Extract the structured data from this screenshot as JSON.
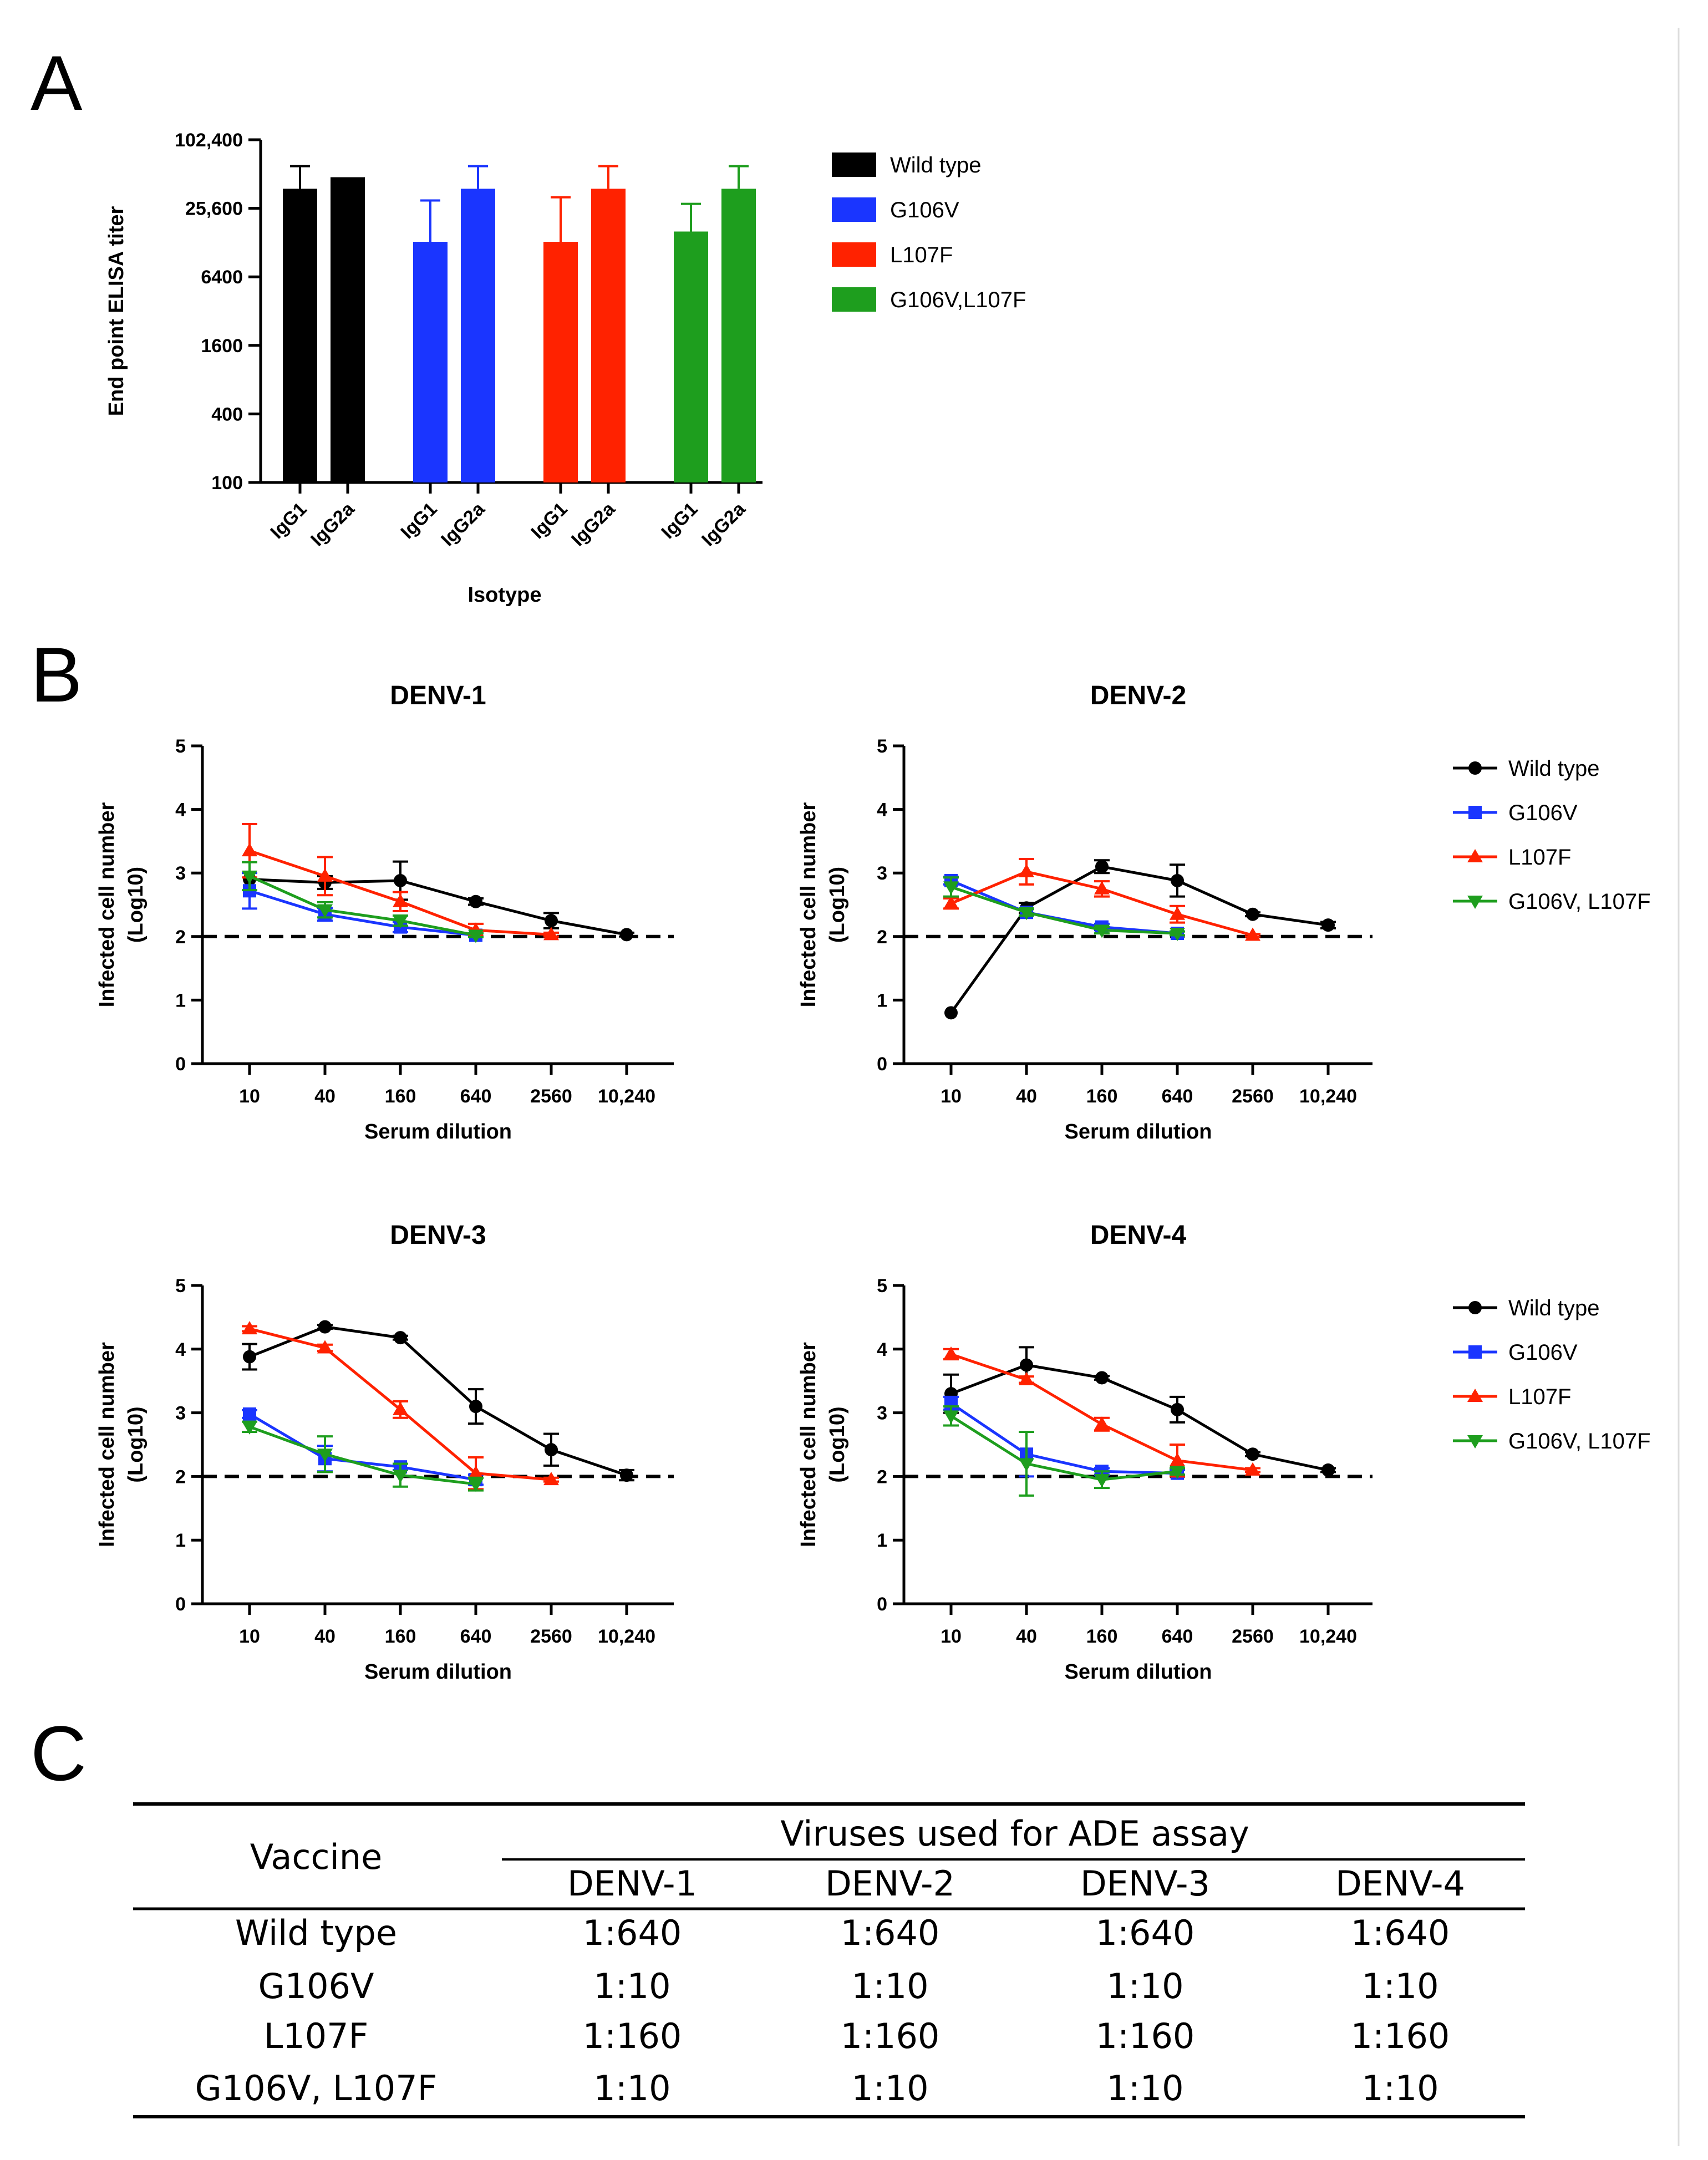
{
  "panels": {
    "a": "A",
    "b": "B",
    "c": "C"
  },
  "colors": {
    "Wild type": "#000000",
    "G106V": "#1a35ff",
    "L107F": "#ff2200",
    "G106V,L107F": "#1e9e1e"
  },
  "chart_data": [
    {
      "type": "bar",
      "panel": "A",
      "title": "",
      "ylabel": "End point ELISA titer",
      "xlabel": "Isotype",
      "yscale": "log",
      "ylim": [
        100,
        102400
      ],
      "ytick_labels": [
        "100",
        "400",
        "1600",
        "6400",
        "25,600",
        "102,400"
      ],
      "categories": [
        "IgG1",
        "IgG2a"
      ],
      "legend": [
        "Wild type",
        "G106V",
        "L107F",
        "G106V,L107F"
      ],
      "series": [
        {
          "name": "Wild type",
          "values": [
            38000,
            48000
          ],
          "error": [
            60000,
            null
          ]
        },
        {
          "name": "G106V",
          "values": [
            13000,
            38000
          ],
          "error": [
            30000,
            60000
          ]
        },
        {
          "name": "L107F",
          "values": [
            13000,
            38000
          ],
          "error": [
            32000,
            60000
          ]
        },
        {
          "name": "G106V,L107F",
          "values": [
            16000,
            38000
          ],
          "error": [
            28000,
            60000
          ]
        }
      ]
    },
    {
      "type": "line",
      "panel": "B",
      "title": "DENV-1",
      "xlabel": "Serum dilution",
      "ylabel": "Infected cell number",
      "ylabel2": "(Log10)",
      "x": [
        "10",
        "40",
        "160",
        "640",
        "2560",
        "10,240"
      ],
      "ylim": [
        0,
        5
      ],
      "yticks": [
        "0",
        "1",
        "2",
        "3",
        "4",
        "5"
      ],
      "reference_line": 2,
      "series": [
        {
          "name": "Wild type",
          "values": [
            2.9,
            2.85,
            2.88,
            2.55,
            2.25,
            2.03
          ],
          "error": [
            0,
            0.1,
            0.3,
            0.05,
            0.12,
            0.03
          ]
        },
        {
          "name": "G106V",
          "values": [
            2.72,
            2.35,
            2.15,
            2.02,
            null,
            null
          ],
          "error": [
            0.28,
            0.1,
            0.08,
            0.03,
            null,
            null
          ]
        },
        {
          "name": "L107F",
          "values": [
            3.35,
            2.95,
            2.55,
            2.1,
            2.03,
            null
          ],
          "error": [
            0.42,
            0.3,
            0.15,
            0.1,
            0.03,
            null
          ]
        },
        {
          "name": "G106V, L107F",
          "values": [
            2.95,
            2.42,
            2.25,
            2.02,
            null,
            null
          ],
          "error": [
            0.22,
            0.12,
            0.08,
            0.03,
            null,
            null
          ]
        }
      ]
    },
    {
      "type": "line",
      "panel": "B",
      "title": "DENV-2",
      "xlabel": "Serum dilution",
      "ylabel": "Infected cell number",
      "ylabel2": "(Log10)",
      "x": [
        "10",
        "40",
        "160",
        "640",
        "2560",
        "10,240"
      ],
      "ylim": [
        0,
        5
      ],
      "yticks": [
        "0",
        "1",
        "2",
        "3",
        "4",
        "5"
      ],
      "reference_line": 2,
      "legend": [
        "Wild type",
        "G106V",
        "L107F",
        "G106V, L107F"
      ],
      "series": [
        {
          "name": "Wild type",
          "values": [
            0.8,
            2.45,
            3.1,
            2.88,
            2.35,
            2.18
          ],
          "error": [
            0,
            0.08,
            0.1,
            0.25,
            0.03,
            0.05
          ]
        },
        {
          "name": "G106V",
          "values": [
            2.88,
            2.38,
            2.15,
            2.05,
            null,
            null
          ],
          "error": [
            0.06,
            0.05,
            0.05,
            0.03,
            null,
            null
          ]
        },
        {
          "name": "L107F",
          "values": [
            2.52,
            3.02,
            2.75,
            2.35,
            2.02,
            null
          ],
          "error": [
            0.08,
            0.2,
            0.12,
            0.13,
            0.02,
            null
          ]
        },
        {
          "name": "G106V, L107F",
          "values": [
            2.78,
            2.38,
            2.1,
            2.05,
            null,
            null
          ],
          "error": [
            0.15,
            0.05,
            0.05,
            0.03,
            null,
            null
          ]
        }
      ]
    },
    {
      "type": "line",
      "panel": "B",
      "title": "DENV-3",
      "xlabel": "Serum dilution",
      "ylabel": "Infected cell number",
      "ylabel2": "(Log10)",
      "x": [
        "10",
        "40",
        "160",
        "640",
        "2560",
        "10,240"
      ],
      "ylim": [
        0,
        5
      ],
      "yticks": [
        "0",
        "1",
        "2",
        "3",
        "4",
        "5"
      ],
      "reference_line": 2,
      "series": [
        {
          "name": "Wild type",
          "values": [
            3.88,
            4.35,
            4.18,
            3.1,
            2.42,
            2.02
          ],
          "error": [
            0.2,
            0.03,
            0.03,
            0.27,
            0.25,
            0.08
          ]
        },
        {
          "name": "G106V",
          "values": [
            2.98,
            2.28,
            2.15,
            1.95,
            null,
            null
          ],
          "error": [
            0.06,
            0.2,
            0.05,
            0.08,
            null,
            null
          ]
        },
        {
          "name": "L107F",
          "values": [
            4.32,
            4.02,
            3.05,
            2.05,
            1.95,
            null
          ],
          "error": [
            0.04,
            0.05,
            0.13,
            0.25,
            0.03,
            null
          ]
        },
        {
          "name": "G106V, L107F",
          "values": [
            2.78,
            2.35,
            2.02,
            1.88,
            null,
            null
          ],
          "error": [
            0.08,
            0.28,
            0.18,
            0.1,
            null,
            null
          ]
        }
      ]
    },
    {
      "type": "line",
      "panel": "B",
      "title": "DENV-4",
      "xlabel": "Serum dilution",
      "ylabel": "Infected cell number",
      "ylabel2": "(Log10)",
      "x": [
        "10",
        "40",
        "160",
        "640",
        "2560",
        "10,240"
      ],
      "ylim": [
        0,
        5
      ],
      "yticks": [
        "0",
        "1",
        "2",
        "3",
        "4",
        "5"
      ],
      "reference_line": 2,
      "legend": [
        "Wild type",
        "G106V",
        "L107F",
        "G106V, L107F"
      ],
      "series": [
        {
          "name": "Wild type",
          "values": [
            3.3,
            3.75,
            3.55,
            3.05,
            2.35,
            2.1
          ],
          "error": [
            0.3,
            0.28,
            0.03,
            0.2,
            0.03,
            0.03
          ]
        },
        {
          "name": "G106V",
          "values": [
            3.15,
            2.35,
            2.08,
            2.05,
            null,
            null
          ],
          "error": [
            0.1,
            0.35,
            0.05,
            0.05,
            null,
            null
          ]
        },
        {
          "name": "L107F",
          "values": [
            3.92,
            3.52,
            2.82,
            2.25,
            2.1,
            null
          ],
          "error": [
            0.08,
            0.05,
            0.1,
            0.25,
            0.03,
            null
          ]
        },
        {
          "name": "G106V, L107F",
          "values": [
            2.95,
            2.2,
            1.95,
            2.08,
            null,
            null
          ],
          "error": [
            0.15,
            0.5,
            0.13,
            0.05,
            null,
            null
          ]
        }
      ]
    },
    {
      "type": "table",
      "panel": "C",
      "header_left": "Vaccine",
      "header_group": "Viruses used for ADE assay",
      "columns": [
        "DENV-1",
        "DENV-2",
        "DENV-3",
        "DENV-4"
      ],
      "rows": [
        {
          "label": "Wild type",
          "values": [
            "1:640",
            "1:640",
            "1:640",
            "1:640"
          ]
        },
        {
          "label": "G106V",
          "values": [
            "1:10",
            "1:10",
            "1:10",
            "1:10"
          ]
        },
        {
          "label": "L107F",
          "values": [
            "1:160",
            "1:160",
            "1:160",
            "1:160"
          ]
        },
        {
          "label": "G106V, L107F",
          "values": [
            "1:10",
            "1:10",
            "1:10",
            "1:10"
          ]
        }
      ]
    }
  ]
}
